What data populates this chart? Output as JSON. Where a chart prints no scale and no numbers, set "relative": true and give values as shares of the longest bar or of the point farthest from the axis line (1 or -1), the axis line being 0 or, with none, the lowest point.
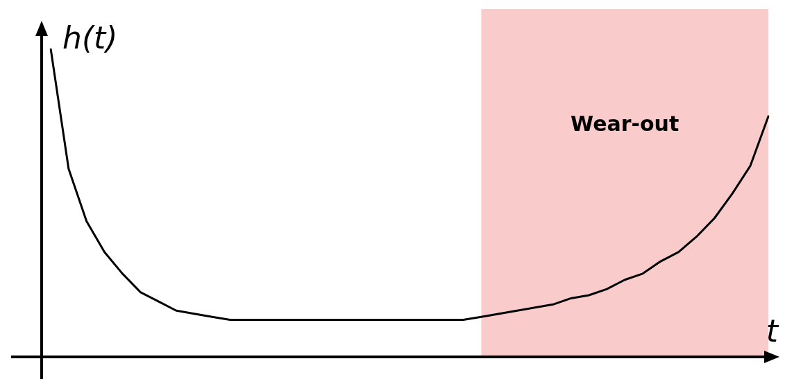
{
  "chart_data": {
    "type": "line",
    "relative": true,
    "xlabel": "t",
    "ylabel": "h(t)",
    "categories": [
      null,
      null,
      null,
      null,
      null,
      null,
      null,
      null,
      null,
      null,
      null,
      null,
      null,
      null,
      null,
      null,
      null,
      null,
      null,
      null,
      null,
      null,
      null,
      null,
      null,
      null,
      null,
      null,
      null,
      null,
      null,
      null,
      null,
      null,
      null,
      null,
      null,
      null,
      null,
      null,
      null
    ],
    "series": [
      {
        "color": "#000000",
        "values": [
          1.0,
          0.61,
          0.44,
          0.34,
          0.27,
          0.21,
          0.18,
          0.15,
          0.14,
          0.13,
          0.12,
          0.12,
          0.12,
          0.12,
          0.12,
          0.12,
          0.12,
          0.12,
          0.12,
          0.12,
          0.12,
          0.12,
          0.12,
          0.12,
          0.13,
          0.14,
          0.15,
          0.16,
          0.17,
          0.19,
          0.2,
          0.22,
          0.25,
          0.27,
          0.31,
          0.34,
          0.39,
          0.45,
          0.53,
          0.62,
          0.78
        ]
      }
    ],
    "annotations": [
      "Wear-out"
    ],
    "grid": false,
    "legend": false,
    "marker": "none",
    "line_style": "solid"
  }
}
